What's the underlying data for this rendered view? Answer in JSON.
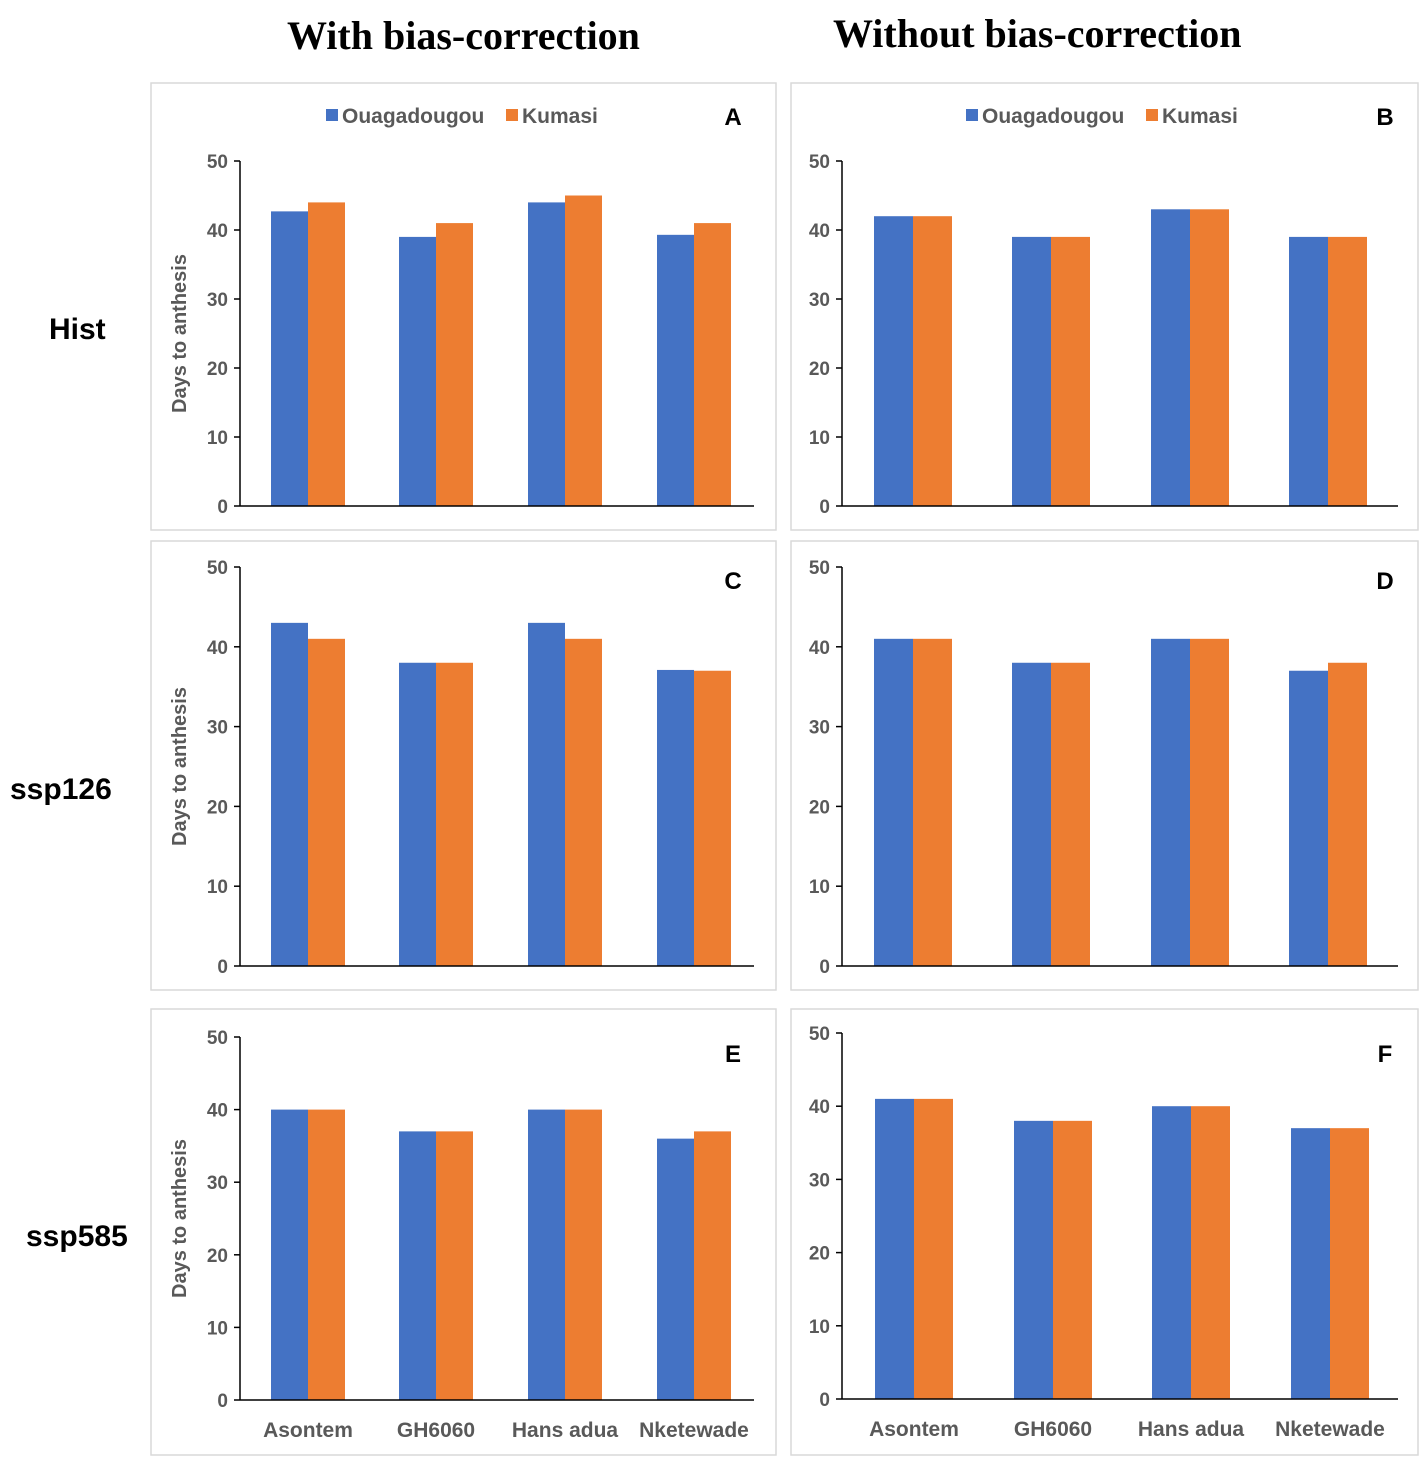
{
  "titles": {
    "with": "With bias-correction",
    "without": "Without bias-correction"
  },
  "rows": {
    "hist": "Hist",
    "ssp126": "ssp126",
    "ssp585": "ssp585"
  },
  "colors": {
    "ouagadougou": "#4472C4",
    "kumasi": "#ED7D31"
  },
  "chart_data": [
    {
      "panel": "A",
      "type": "bar",
      "categories": [
        "Asontem",
        "GH6060",
        "Hans adua",
        "Nketewade"
      ],
      "series": [
        {
          "name": "Ouagadougou",
          "values": [
            42.7,
            39,
            44,
            39.3
          ]
        },
        {
          "name": "Kumasi",
          "values": [
            44,
            41,
            45,
            41
          ]
        }
      ],
      "ylabel": "Days to anthesis",
      "yticks": [
        "0",
        "10",
        "20",
        "30",
        "40",
        "50"
      ],
      "ylim": [
        0,
        50
      ],
      "legend": "top",
      "show_x_labels": false
    },
    {
      "panel": "B",
      "type": "bar",
      "categories": [
        "Asontem",
        "GH6060",
        "Hans adua",
        "Nketewade"
      ],
      "series": [
        {
          "name": "Ouagadougou",
          "values": [
            42,
            39,
            43,
            39
          ]
        },
        {
          "name": "Kumasi",
          "values": [
            42,
            39,
            43,
            39
          ]
        }
      ],
      "ylabel": "",
      "yticks": [
        "0",
        "10",
        "20",
        "30",
        "40",
        "50"
      ],
      "ylim": [
        0,
        50
      ],
      "legend": "top",
      "show_x_labels": false
    },
    {
      "panel": "C",
      "type": "bar",
      "categories": [
        "Asontem",
        "GH6060",
        "Hans adua",
        "Nketewade"
      ],
      "series": [
        {
          "name": "Ouagadougou",
          "values": [
            43,
            38,
            43,
            37.1
          ]
        },
        {
          "name": "Kumasi",
          "values": [
            41,
            38,
            41,
            37
          ]
        }
      ],
      "ylabel": "Days to anthesis",
      "yticks": [
        "0",
        "10",
        "20",
        "30",
        "40",
        "50"
      ],
      "ylim": [
        0,
        50
      ],
      "legend": "none",
      "show_x_labels": false
    },
    {
      "panel": "D",
      "type": "bar",
      "categories": [
        "Asontem",
        "GH6060",
        "Hans adua",
        "Nketewade"
      ],
      "series": [
        {
          "name": "Ouagadougou",
          "values": [
            41,
            38,
            41,
            37
          ]
        },
        {
          "name": "Kumasi",
          "values": [
            41,
            38,
            41,
            38
          ]
        }
      ],
      "ylabel": "",
      "yticks": [
        "0",
        "10",
        "20",
        "30",
        "40",
        "50"
      ],
      "ylim": [
        0,
        50
      ],
      "legend": "none",
      "show_x_labels": false
    },
    {
      "panel": "E",
      "type": "bar",
      "categories": [
        "Asontem",
        "GH6060",
        "Hans adua",
        "Nketewade"
      ],
      "series": [
        {
          "name": "Ouagadougou",
          "values": [
            40,
            37,
            40,
            36
          ]
        },
        {
          "name": "Kumasi",
          "values": [
            40,
            37,
            40,
            37
          ]
        }
      ],
      "ylabel": "Days to anthesis",
      "yticks": [
        "0",
        "10",
        "20",
        "30",
        "40",
        "50"
      ],
      "ylim": [
        0,
        50
      ],
      "legend": "none",
      "show_x_labels": true
    },
    {
      "panel": "F",
      "type": "bar",
      "categories": [
        "Asontem",
        "GH6060",
        "Hans adua",
        "Nketewade"
      ],
      "series": [
        {
          "name": "Ouagadougou",
          "values": [
            41,
            38,
            40,
            37
          ]
        },
        {
          "name": "Kumasi",
          "values": [
            41,
            38,
            40,
            37
          ]
        }
      ],
      "ylabel": "",
      "yticks": [
        "0",
        "10",
        "20",
        "30",
        "40",
        "50"
      ],
      "ylim": [
        0,
        50
      ],
      "legend": "none",
      "show_x_labels": true
    }
  ]
}
